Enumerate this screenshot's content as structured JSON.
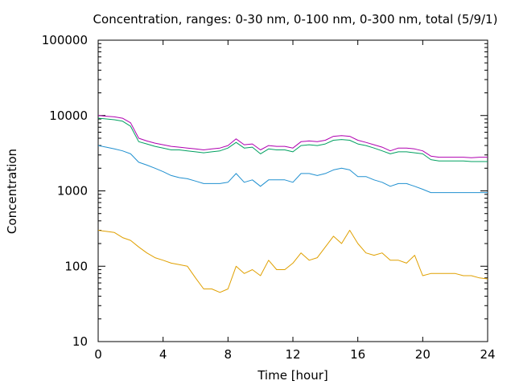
{
  "chart_data": {
    "type": "line",
    "title": "Concentration, ranges: 0-30 nm, 0-100 nm, 0-300 nm, total (5/9/1)",
    "xlabel": "Time [hour]",
    "ylabel": "Concentration",
    "xlim": [
      0,
      24
    ],
    "ylim": [
      10,
      100000
    ],
    "yscale": "log",
    "grid": false,
    "legend": "none",
    "x_ticks": [
      0,
      4,
      8,
      12,
      16,
      20,
      24
    ],
    "x_tick_labels": [
      "0",
      "4",
      "8",
      "12",
      "16",
      "20",
      "24"
    ],
    "y_ticks": [
      10,
      100,
      1000,
      10000,
      100000
    ],
    "y_tick_labels": [
      "10",
      "100",
      "1000",
      "10000",
      "100000"
    ],
    "x": [
      0,
      0.5,
      1,
      1.5,
      2,
      2.5,
      3,
      3.5,
      4,
      4.5,
      5,
      5.5,
      6,
      6.5,
      7,
      7.5,
      8,
      8.5,
      9,
      9.5,
      10,
      10.5,
      11,
      11.5,
      12,
      12.5,
      13,
      13.5,
      14,
      14.5,
      15,
      15.5,
      16,
      16.5,
      17,
      17.5,
      18,
      18.5,
      19,
      19.5,
      20,
      20.5,
      21,
      21.5,
      22,
      22.5,
      23,
      23.5,
      24
    ],
    "series": [
      {
        "color": "#b000b0",
        "values": [
          10000,
          9800,
          9600,
          9200,
          8000,
          5000,
          4600,
          4300,
          4100,
          3900,
          3800,
          3700,
          3600,
          3500,
          3600,
          3700,
          4000,
          4900,
          4100,
          4200,
          3500,
          4000,
          3900,
          3900,
          3700,
          4500,
          4600,
          4500,
          4700,
          5300,
          5400,
          5300,
          4700,
          4400,
          4100,
          3800,
          3400,
          3700,
          3700,
          3600,
          3400,
          2900,
          2800,
          2800,
          2800,
          2800,
          2750,
          2800,
          2800
        ]
      },
      {
        "color": "#00a060",
        "values": [
          9200,
          9000,
          8800,
          8400,
          7200,
          4500,
          4200,
          3900,
          3700,
          3500,
          3500,
          3400,
          3300,
          3200,
          3300,
          3400,
          3700,
          4400,
          3700,
          3800,
          3100,
          3600,
          3500,
          3500,
          3300,
          4000,
          4100,
          4000,
          4200,
          4700,
          4800,
          4700,
          4200,
          4000,
          3700,
          3400,
          3100,
          3300,
          3300,
          3200,
          3100,
          2600,
          2500,
          2500,
          2500,
          2500,
          2450,
          2450,
          2450
        ]
      },
      {
        "color": "#2090d0",
        "values": [
          4000,
          3800,
          3600,
          3400,
          3100,
          2400,
          2200,
          2000,
          1800,
          1600,
          1500,
          1450,
          1350,
          1250,
          1250,
          1250,
          1300,
          1700,
          1300,
          1400,
          1150,
          1400,
          1400,
          1400,
          1300,
          1700,
          1700,
          1600,
          1700,
          1900,
          2000,
          1900,
          1550,
          1550,
          1400,
          1300,
          1150,
          1250,
          1250,
          1150,
          1050,
          950,
          950,
          950,
          950,
          950,
          950,
          950,
          950
        ]
      },
      {
        "color": "#e0a000",
        "values": [
          300,
          290,
          280,
          240,
          220,
          180,
          150,
          130,
          120,
          110,
          105,
          100,
          70,
          50,
          50,
          45,
          50,
          100,
          80,
          90,
          75,
          120,
          90,
          90,
          110,
          150,
          120,
          130,
          180,
          250,
          200,
          300,
          200,
          150,
          140,
          150,
          120,
          120,
          110,
          140,
          75,
          80,
          80,
          80,
          80,
          75,
          75,
          70,
          68
        ]
      }
    ]
  }
}
